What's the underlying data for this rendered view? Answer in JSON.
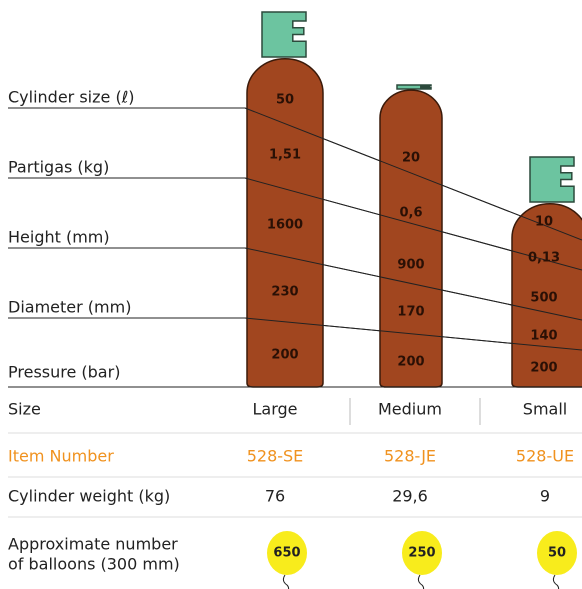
{
  "parameters": [
    "Cylinder size (ℓ)",
    "Partigas (kg)",
    "Height (mm)",
    "Diameter (mm)",
    "Pressure (bar)"
  ],
  "cylinders": [
    {
      "values": [
        "50",
        "1,51",
        "1600",
        "230",
        "200"
      ]
    },
    {
      "values": [
        "20",
        "0,6",
        "900",
        "170",
        "200"
      ]
    },
    {
      "values": [
        "10",
        "0,13",
        "500",
        "140",
        "200"
      ]
    }
  ],
  "table": {
    "rows": [
      [
        "Size",
        "Large",
        "Medium",
        "Small"
      ],
      [
        "Item Number",
        "528-SE",
        "528-JE",
        "528-UE"
      ],
      [
        "Cylinder weight (kg)",
        "76",
        "29,6",
        "9"
      ],
      [
        [
          "Approximate number",
          "of balloons (300 mm)"
        ],
        "650",
        "250",
        "50"
      ]
    ]
  }
}
